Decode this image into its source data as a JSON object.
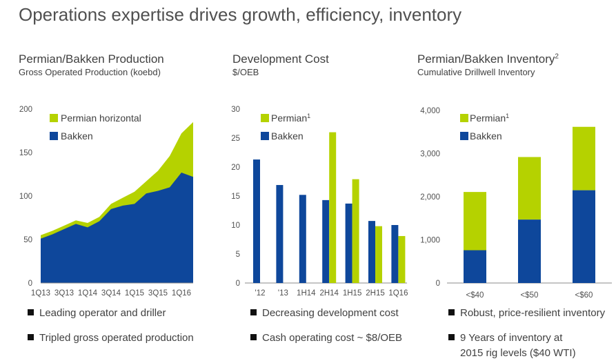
{
  "title": "Operations expertise drives growth, efficiency, inventory",
  "colors": {
    "permian": "#b5d200",
    "bakken": "#0e479b",
    "axis": "#888888"
  },
  "panels": [
    {
      "heading": "Permian/Bakken Production",
      "subtitle": "Gross Operated Production (koebd)",
      "bullets": [
        "Leading operator and driller",
        "Tripled gross operated production"
      ]
    },
    {
      "heading": "Development Cost",
      "subtitle": "$/OEB",
      "bullets": [
        "Decreasing development cost",
        "Cash operating cost ~ $8/OEB"
      ]
    },
    {
      "heading": "Permian/Bakken Inventory",
      "heading_sup": "2",
      "subtitle": "Cumulative Drillwell Inventory",
      "bullets": [
        "Robust, price-resilient inventory",
        "9 Years of inventory at",
        "2015 rig levels ($40 WTI)"
      ]
    }
  ],
  "chart_data": [
    {
      "type": "area",
      "stacked": true,
      "x": [
        "1Q13",
        "2Q13",
        "3Q13",
        "4Q13",
        "1Q14",
        "2Q14",
        "3Q14",
        "4Q14",
        "1Q15",
        "2Q15",
        "3Q15",
        "4Q15",
        "1Q16",
        "2Q16"
      ],
      "xtick_labels": [
        "1Q13",
        "3Q13",
        "1Q14",
        "3Q14",
        "1Q15",
        "3Q15",
        "1Q16"
      ],
      "series": [
        {
          "name": "Bakken",
          "values": [
            51,
            56,
            62,
            68,
            64,
            71,
            85,
            89,
            91,
            103,
            106,
            110,
            127,
            122
          ]
        },
        {
          "name": "Permian horizontal",
          "values": [
            4,
            4,
            4,
            4,
            5,
            5,
            6,
            9,
            14,
            14,
            23,
            36,
            45,
            63
          ]
        }
      ],
      "ylim": [
        0,
        200
      ],
      "yticks": [
        "0",
        "50",
        "100",
        "150",
        "200"
      ],
      "legend": "top-left"
    },
    {
      "type": "bar",
      "grouped": true,
      "categories": [
        "'12",
        "'13",
        "1H14",
        "2H14",
        "1H15",
        "2H15",
        "1Q16"
      ],
      "series": [
        {
          "name": "Bakken",
          "values": [
            21.3,
            16.9,
            15.2,
            14.3,
            13.7,
            10.7,
            10.0
          ]
        },
        {
          "name": "Permian",
          "name_sup": "1",
          "values": [
            null,
            null,
            null,
            26.0,
            17.9,
            9.8,
            8.1
          ]
        }
      ],
      "ylim": [
        0,
        30
      ],
      "yticks": [
        "0",
        "5",
        "10",
        "15",
        "20",
        "25",
        "30"
      ],
      "legend": "top-left"
    },
    {
      "type": "bar",
      "stacked": true,
      "categories": [
        "<$40",
        "<$50",
        "<$60"
      ],
      "series": [
        {
          "name": "Bakken",
          "values": [
            760,
            1470,
            2150
          ]
        },
        {
          "name": "Permian",
          "name_sup": "1",
          "values": [
            1350,
            1450,
            1470
          ]
        }
      ],
      "ylim": [
        0,
        4000
      ],
      "yticks": [
        "0",
        "1,000",
        "2,000",
        "3,000",
        "4,000"
      ],
      "legend": "top-left"
    }
  ]
}
